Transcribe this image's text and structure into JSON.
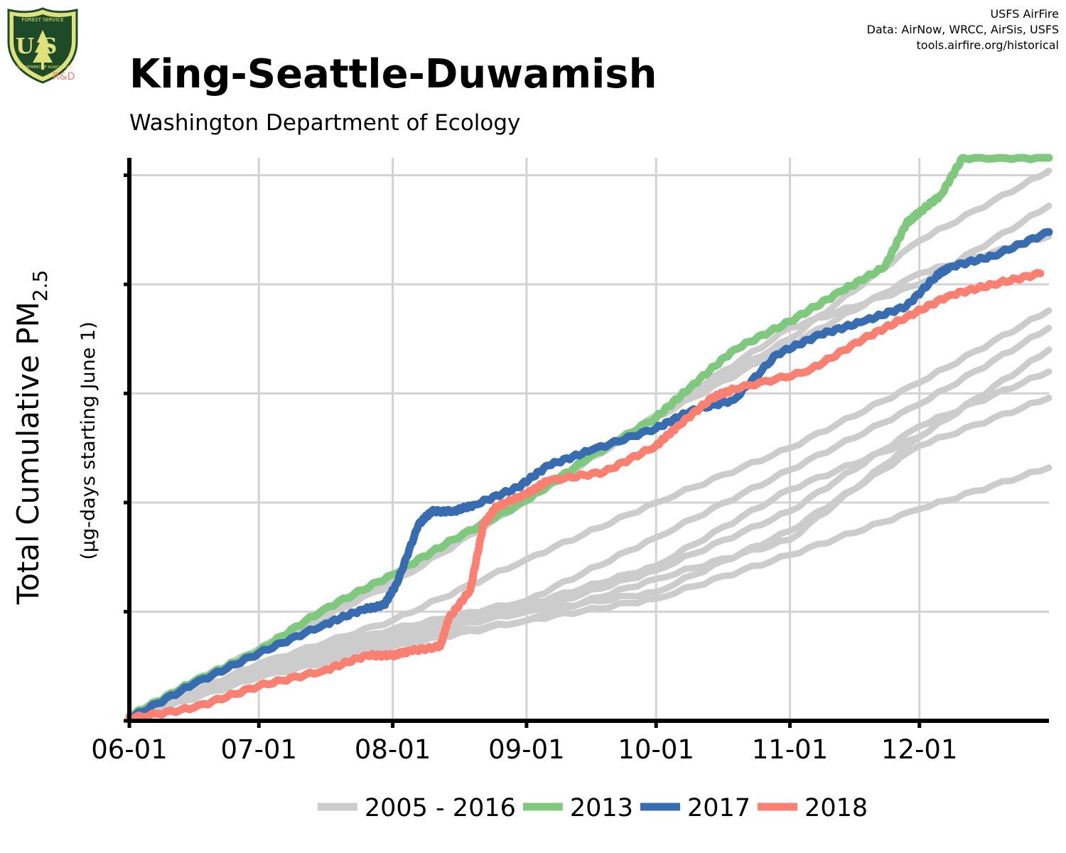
{
  "header": {
    "title": "King-Seattle-Duwamish",
    "subtitle": "Washington Department of Ecology"
  },
  "credits": {
    "line1": "USFS AirFire",
    "line2": "Data: AirNow, WRCC, AirSis, USFS",
    "line3": "tools.airfire.org/historical"
  },
  "logo": {
    "top_text": "FOREST SERVICE",
    "letters": "U S",
    "bottom_text": "DEPARTMENT OF AGRICULTURE",
    "rd_label": "R&D"
  },
  "colors": {
    "history": "#cccccc",
    "y2013": "#7fc97f",
    "y2017": "#386cb0",
    "y2018": "#fb8072",
    "grid": "#d3d3d3",
    "axis": "#000000"
  },
  "chart_data": {
    "type": "line",
    "ylabel_main": "Total Cumulative PM",
    "ylabel_sub": "2.5",
    "ylabel_units": "(µg-days starting June 1)",
    "x_ticks": [
      "06-01",
      "07-01",
      "08-01",
      "09-01",
      "10-01",
      "11-01",
      "12-01"
    ],
    "x_tick_days": [
      0,
      30,
      61,
      92,
      122,
      153,
      183
    ],
    "x_range": [
      0,
      213
    ],
    "y_range": [
      0,
      2580
    ],
    "y_ticks": [
      0,
      500,
      1000,
      1500,
      2000,
      2500
    ],
    "y_tick_labels_visible": false,
    "grid": true,
    "legend_position": "bottom",
    "legend": [
      "2005 - 2016",
      "2013",
      "2017",
      "2018"
    ],
    "history": [
      {
        "x": [
          0,
          30,
          61,
          92,
          122,
          153,
          183,
          213
        ],
        "y": [
          20,
          330,
          630,
          1010,
          1400,
          1750,
          2200,
          2520
        ]
      },
      {
        "x": [
          0,
          30,
          61,
          92,
          122,
          153,
          183,
          213
        ],
        "y": [
          15,
          330,
          640,
          1010,
          1400,
          1800,
          2000,
          2360
        ]
      },
      {
        "x": [
          0,
          30,
          61,
          92,
          122,
          153,
          183,
          213
        ],
        "y": [
          15,
          330,
          640,
          1010,
          1390,
          1720,
          2050,
          2220
        ]
      },
      {
        "x": [
          0,
          30,
          61,
          92,
          122,
          153,
          183,
          213
        ],
        "y": [
          10,
          260,
          420,
          550,
          840,
          1150,
          1450,
          1800
        ]
      },
      {
        "x": [
          0,
          30,
          61,
          92,
          122,
          153,
          183,
          213
        ],
        "y": [
          10,
          250,
          390,
          530,
          710,
          1060,
          1300,
          1700
        ]
      },
      {
        "x": [
          0,
          30,
          61,
          92,
          122,
          153,
          183,
          213
        ],
        "y": [
          10,
          250,
          390,
          500,
          690,
          960,
          1350,
          1600
        ]
      },
      {
        "x": [
          0,
          30,
          61,
          92,
          122,
          153,
          183,
          213
        ],
        "y": [
          10,
          240,
          380,
          500,
          590,
          870,
          1260,
          1480
        ]
      },
      {
        "x": [
          0,
          30,
          61,
          92,
          122,
          153,
          183,
          213
        ],
        "y": [
          10,
          200,
          340,
          460,
          560,
          760,
          970,
          1160
        ]
      },
      {
        "x": [
          0,
          30,
          61,
          92,
          122,
          153,
          183,
          213
        ],
        "y": [
          10,
          230,
          360,
          460,
          650,
          830,
          1300,
          1700
        ]
      },
      {
        "x": [
          0,
          30,
          61,
          92,
          122,
          153,
          183,
          213
        ],
        "y": [
          10,
          260,
          460,
          740,
          1000,
          1250,
          1550,
          1880
        ]
      }
    ],
    "series": [
      {
        "name": "2013",
        "x": [
          0,
          15,
          30,
          45,
          61,
          75,
          92,
          106,
          122,
          130,
          140,
          153,
          165,
          175,
          180,
          183,
          188,
          193,
          213
        ],
        "y": [
          20,
          180,
          320,
          510,
          670,
          830,
          1010,
          1200,
          1390,
          1530,
          1700,
          1830,
          1970,
          2080,
          2280,
          2330,
          2410,
          2580,
          2580
        ]
      },
      {
        "name": "2017",
        "x": [
          0,
          15,
          30,
          45,
          54,
          59,
          62,
          67,
          70,
          75,
          80,
          90,
          97,
          107,
          122,
          130,
          140,
          150,
          160,
          170,
          180,
          187,
          190,
          200,
          213
        ],
        "y": [
          10,
          170,
          310,
          440,
          510,
          530,
          630,
          900,
          960,
          960,
          990,
          1070,
          1170,
          1240,
          1340,
          1420,
          1470,
          1680,
          1770,
          1830,
          1900,
          2040,
          2080,
          2130,
          2240
        ]
      },
      {
        "name": "2018",
        "x": [
          0,
          15,
          30,
          45,
          55,
          61,
          65,
          72,
          74,
          79,
          82,
          85,
          92,
          97,
          110,
          122,
          127,
          135,
          140,
          157,
          170,
          180,
          190,
          200,
          211
        ],
        "y": [
          10,
          60,
          160,
          230,
          300,
          300,
          320,
          340,
          470,
          600,
          900,
          980,
          1040,
          1100,
          1140,
          1260,
          1350,
          1480,
          1520,
          1600,
          1750,
          1850,
          1950,
          2000,
          2050
        ]
      }
    ]
  }
}
